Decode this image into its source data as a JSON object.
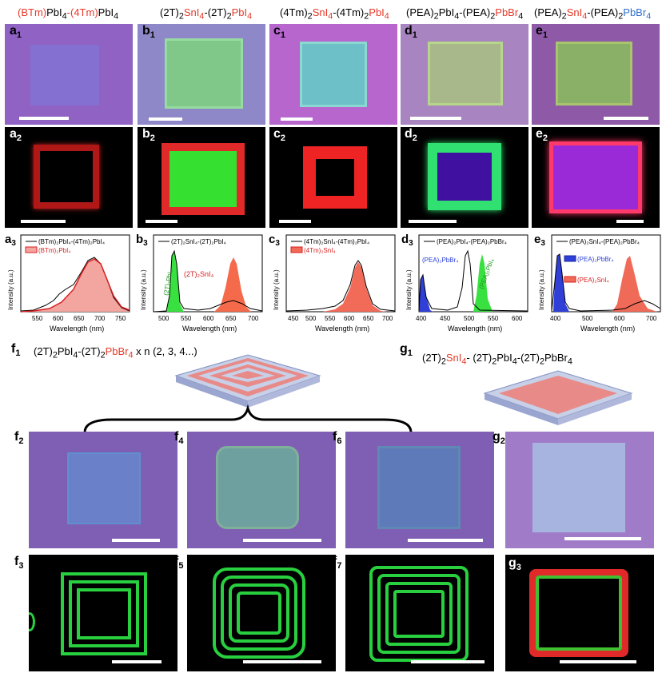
{
  "titles": {
    "a": {
      "p1": "(BTm)",
      "p2": "PbI",
      "p3": "-(4Tm)",
      "p4": "PbI"
    },
    "b": {
      "p1": "(2T)",
      "p2": "SnI",
      "p3": "-(2T)",
      "p4": "PbI"
    },
    "c": {
      "p1": "(4Tm)",
      "p2": "SnI",
      "p3": "-(4Tm)",
      "p4": "PbI"
    },
    "d": {
      "p1": "(PEA)",
      "p2": "PbI",
      "p3": "-(PEA)",
      "p4": "PbBr"
    },
    "e": {
      "p1": "(PEA)",
      "p2": "SnI",
      "p3": "-(PEA)",
      "p4": "PbBr"
    },
    "f1": {
      "p1": "(2T)",
      "p2": "PbI",
      "p3": "-(2T)",
      "p4": "PbBr",
      "p5": " x n (2, 3, 4...)"
    },
    "g1": {
      "p1": "(2T)",
      "p2": "SnI",
      "p3": "- (2T)",
      "p4": "PbI",
      "p5": "-(2T)",
      "p6": "PbBr"
    }
  },
  "sub": {
    "two": "2",
    "four": "4"
  },
  "labels": {
    "a1": "a",
    "a2": "a",
    "a3": "a",
    "b1": "b",
    "b2": "b",
    "b3": "b",
    "c1": "c",
    "c2": "c",
    "c3": "c",
    "d1": "d",
    "d2": "d",
    "d3": "d",
    "e1": "e",
    "e2": "e",
    "e3": "e",
    "f1": "f",
    "f2": "f",
    "f3": "f",
    "f4": "f",
    "f5": "f",
    "f6": "f",
    "f7": "f",
    "g1": "g",
    "g2": "g",
    "g3": "g",
    "n1": "1",
    "n2": "2",
    "n3": "3",
    "n4": "4",
    "n5": "5",
    "n6": "6",
    "n7": "7"
  },
  "spectra": {
    "ylabel": "Intensity (a.u.)",
    "xlabel": "Wavelength (nm)",
    "a3": {
      "xticks": [
        "550",
        "600",
        "650",
        "700",
        "750"
      ],
      "legend_line": "(BTm)₂PbI₄-(4Tm)₂PbI₄",
      "legend_fill": "(BTm)₂PbI₄"
    },
    "b3": {
      "xticks": [
        "500",
        "550",
        "600",
        "650",
        "700"
      ],
      "legend_line": "(2T)₂SnI₄-(2T)₂PbI₄",
      "ann_green": "(2T)₂PbI₄",
      "ann_red": "(2T)₂SnI₄"
    },
    "c3": {
      "xticks": [
        "500",
        "550",
        "600",
        "650",
        "700"
      ],
      "xtick0": "450",
      "legend_line": "(4Tm)₂SnI₄-(4Tm)₂PbI₄",
      "legend_fill": "(4Tm)₂SnI₄"
    },
    "d3": {
      "xticks": [
        "400",
        "450",
        "500",
        "550",
        "600"
      ],
      "legend_line": "(PEA)₂PbI₄-(PEA)₂PbBr₄",
      "ann_blue": "(PEA)₂PbBr₄",
      "ann_green": "(PEA)₂PbI₄"
    },
    "e3": {
      "xticks": [
        "400",
        "500",
        "600",
        "700"
      ],
      "legend_line": "(PEA)₂SnI₄-(PEA)₂PbBr₄",
      "legend_blue": "(PEA)₂PbBr₄",
      "legend_red": "(PEA)₂SnI₄"
    }
  },
  "colors": {
    "purple": "#8a6fc0",
    "red": "#e23b2a",
    "green": "#2fd84a",
    "blue": "#2a3fd6",
    "darkbg": "#000000"
  }
}
